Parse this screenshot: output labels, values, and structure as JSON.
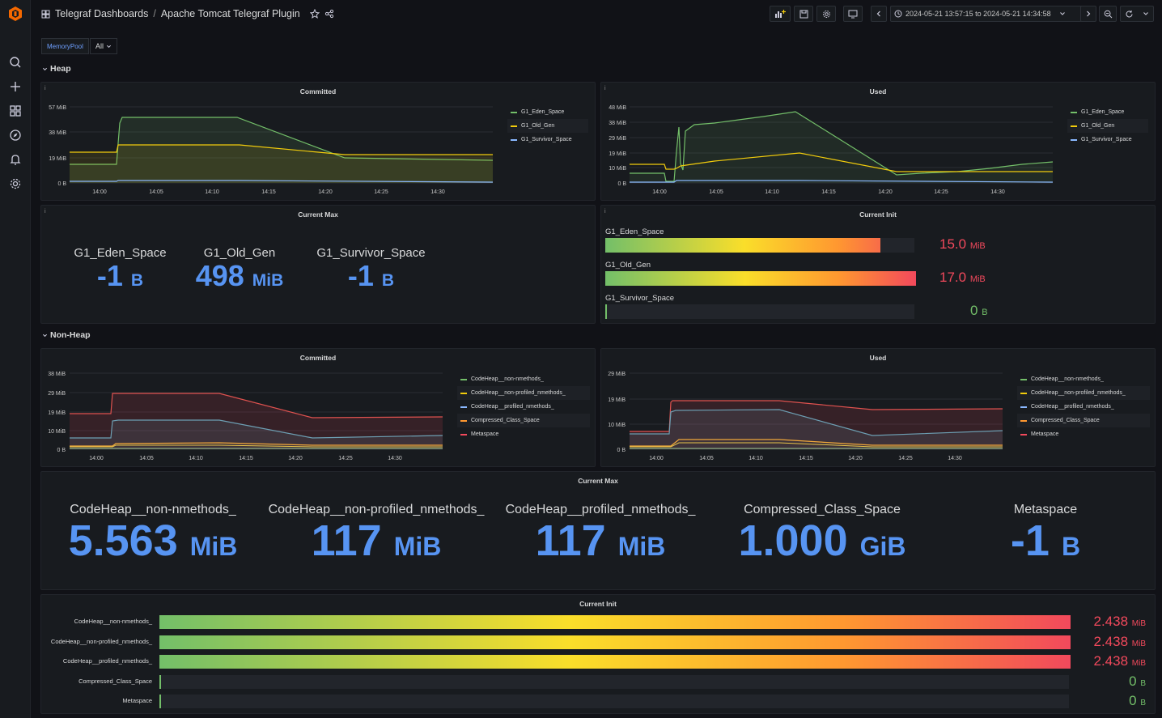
{
  "header": {
    "breadcrumb_folder": "Telegraf Dashboards",
    "breadcrumb_sep": "/",
    "dashboard_title": "Apache Tomcat Telegraf Plugin",
    "time_range": "2024-05-21 13:57:15 to 2024-05-21 14:34:58"
  },
  "variables": {
    "label": "MemoryPool",
    "value": "All"
  },
  "rows": {
    "heap": "Heap",
    "nonheap": "Non-Heap"
  },
  "colors": {
    "green": "#73bf69",
    "yellow": "#f2cc0c",
    "blue": "#8ab8ff",
    "orange": "#ff9830",
    "red": "#f2495c",
    "stat_blue": "#5794f2",
    "teal": "#6d9fb3"
  },
  "heap": {
    "committed": {
      "title": "Committed",
      "y_ticks": [
        "57 MiB",
        "38 MiB",
        "19 MiB",
        "0 B"
      ],
      "x_ticks": [
        "14:00",
        "14:05",
        "14:10",
        "14:15",
        "14:20",
        "14:25",
        "14:30"
      ],
      "legend": [
        "G1_Eden_Space",
        "G1_Old_Gen",
        "G1_Survivor_Space"
      ]
    },
    "used": {
      "title": "Used",
      "y_ticks": [
        "48 MiB",
        "38 MiB",
        "29 MiB",
        "19 MiB",
        "10 MiB",
        "0 B"
      ],
      "x_ticks": [
        "14:00",
        "14:05",
        "14:10",
        "14:15",
        "14:20",
        "14:25",
        "14:30"
      ],
      "legend": [
        "G1_Eden_Space",
        "G1_Old_Gen",
        "G1_Survivor_Space"
      ]
    },
    "current_max": {
      "title": "Current Max",
      "items": [
        {
          "label": "G1_Eden_Space",
          "value": "-1",
          "unit": "B"
        },
        {
          "label": "G1_Old_Gen",
          "value": "498",
          "unit": "MiB"
        },
        {
          "label": "G1_Survivor_Space",
          "value": "-1",
          "unit": "B"
        }
      ]
    },
    "current_init": {
      "title": "Current Init",
      "items": [
        {
          "label": "G1_Eden_Space",
          "value": "15.0",
          "unit": "MiB",
          "fill": 0.89,
          "color": "#f2495c"
        },
        {
          "label": "G1_Old_Gen",
          "value": "17.0",
          "unit": "MiB",
          "fill": 1.0,
          "color": "#f2495c"
        },
        {
          "label": "G1_Survivor_Space",
          "value": "0",
          "unit": "B",
          "fill": 0.0,
          "color": "#73bf69"
        }
      ]
    }
  },
  "nonheap": {
    "committed": {
      "title": "Committed",
      "y_ticks": [
        "38 MiB",
        "29 MiB",
        "19 MiB",
        "10 MiB",
        "0 B"
      ],
      "x_ticks": [
        "14:00",
        "14:05",
        "14:10",
        "14:15",
        "14:20",
        "14:25",
        "14:30"
      ],
      "legend": [
        "CodeHeap__non-nmethods_",
        "CodeHeap__non-profiled_nmethods_",
        "CodeHeap__profiled_nmethods_",
        "Compressed_Class_Space",
        "Metaspace"
      ]
    },
    "used": {
      "title": "Used",
      "y_ticks": [
        "29 MiB",
        "19 MiB",
        "10 MiB",
        "0 B"
      ],
      "x_ticks": [
        "14:00",
        "14:05",
        "14:10",
        "14:15",
        "14:20",
        "14:25",
        "14:30"
      ],
      "legend": [
        "CodeHeap__non-nmethods_",
        "CodeHeap__non-profiled_nmethods_",
        "CodeHeap__profiled_nmethods_",
        "Compressed_Class_Space",
        "Metaspace"
      ]
    },
    "current_max": {
      "title": "Current Max",
      "items": [
        {
          "label": "CodeHeap__non-nmethods_",
          "value": "5.563",
          "unit": "MiB"
        },
        {
          "label": "CodeHeap__non-profiled_nmethods_",
          "value": "117",
          "unit": "MiB"
        },
        {
          "label": "CodeHeap__profiled_nmethods_",
          "value": "117",
          "unit": "MiB"
        },
        {
          "label": "Compressed_Class_Space",
          "value": "1.000",
          "unit": "GiB"
        },
        {
          "label": "Metaspace",
          "value": "-1",
          "unit": "B"
        }
      ]
    },
    "current_init": {
      "title": "Current Init",
      "items": [
        {
          "label": "CodeHeap__non-nmethods_",
          "value": "2.438",
          "unit": "MiB",
          "fill": 1.0,
          "color": "#f2495c"
        },
        {
          "label": "CodeHeap__non-profiled_nmethods_",
          "value": "2.438",
          "unit": "MiB",
          "fill": 1.0,
          "color": "#f2495c"
        },
        {
          "label": "CodeHeap__profiled_nmethods_",
          "value": "2.438",
          "unit": "MiB",
          "fill": 1.0,
          "color": "#f2495c"
        },
        {
          "label": "Compressed_Class_Space",
          "value": "0",
          "unit": "B",
          "fill": 0.0,
          "color": "#73bf69"
        },
        {
          "label": "Metaspace",
          "value": "0",
          "unit": "B",
          "fill": 0.0,
          "color": "#73bf69"
        }
      ]
    }
  }
}
